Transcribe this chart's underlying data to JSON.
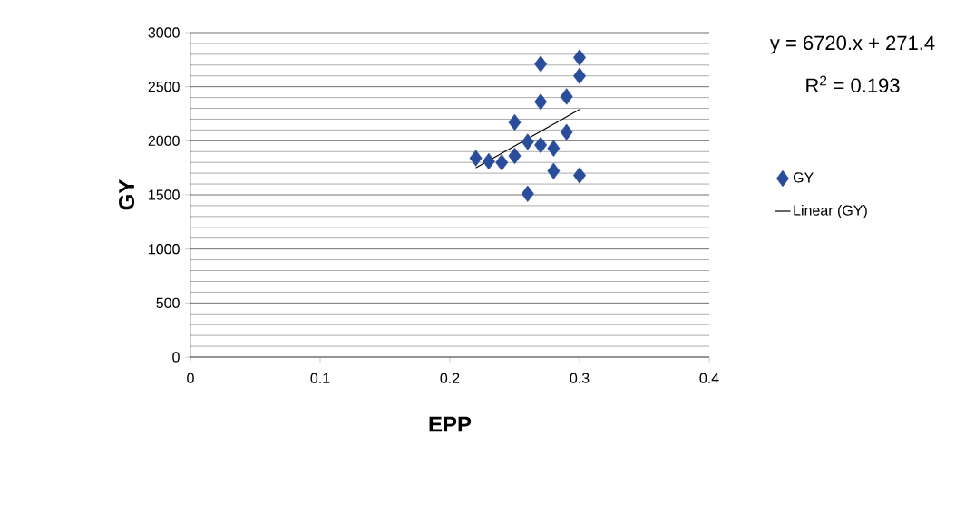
{
  "chart_data": {
    "type": "scatter",
    "xlabel": "EPP",
    "ylabel": "GY",
    "xlim": [
      0,
      0.4
    ],
    "ylim": [
      0,
      3000
    ],
    "xticks": [
      0,
      0.1,
      0.2,
      0.3,
      0.4
    ],
    "yticks": [
      0,
      500,
      1000,
      1500,
      2000,
      2500,
      3000
    ],
    "grid": "y",
    "legend": "right",
    "marker": "diamond",
    "series": [
      {
        "name": "GY",
        "color": "#2a4d9b",
        "x": [
          0.27,
          0.3,
          0.3,
          0.27,
          0.29,
          0.25,
          0.29,
          0.22,
          0.23,
          0.24,
          0.25,
          0.26,
          0.27,
          0.28,
          0.28,
          0.3,
          0.26
        ],
        "values": [
          2710,
          2770,
          2600,
          2360,
          2410,
          2170,
          2080,
          1840,
          1810,
          1800,
          1860,
          1990,
          1960,
          1930,
          1720,
          1680,
          1510
        ]
      },
      {
        "name": "Linear (GY)",
        "type": "line",
        "color": "#000000",
        "line_style": "solid",
        "marker": "none",
        "x": [
          0.22,
          0.3
        ],
        "values": [
          1750,
          2290
        ]
      }
    ],
    "annotations": [
      "y = 6720.x + 271.4",
      "R$^{2}$ = 0.193"
    ]
  }
}
